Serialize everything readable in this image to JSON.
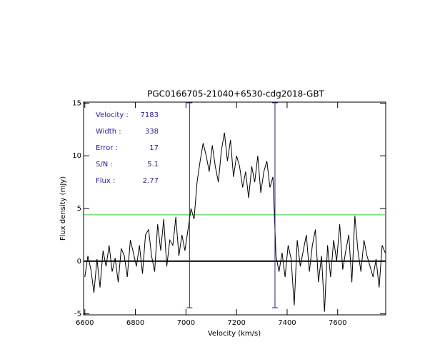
{
  "chart_data": {
    "type": "line",
    "title": "PGC0166705-21040+6530-cdg2018-GBT",
    "xlabel": "Velocity (km/s)",
    "ylabel": "Flux density (mJy)",
    "color": "#000000",
    "x": [
      6600,
      6612,
      6624,
      6636,
      6648,
      6660,
      6672,
      6684,
      6696,
      6708,
      6720,
      6732,
      6744,
      6756,
      6768,
      6780,
      6792,
      6804,
      6816,
      6828,
      6840,
      6852,
      6864,
      6876,
      6888,
      6900,
      6912,
      6924,
      6936,
      6948,
      6960,
      6972,
      6984,
      6996,
      7008,
      7020,
      7032,
      7044,
      7056,
      7068,
      7080,
      7092,
      7104,
      7116,
      7128,
      7140,
      7152,
      7164,
      7176,
      7188,
      7200,
      7212,
      7224,
      7236,
      7248,
      7260,
      7272,
      7284,
      7296,
      7308,
      7320,
      7332,
      7344,
      7356,
      7368,
      7380,
      7392,
      7404,
      7416,
      7428,
      7440,
      7452,
      7464,
      7476,
      7488,
      7500,
      7512,
      7524,
      7536,
      7548,
      7560,
      7572,
      7584,
      7596,
      7608,
      7620,
      7632,
      7644,
      7656,
      7668,
      7680,
      7692,
      7704,
      7716,
      7728,
      7740,
      7752,
      7764,
      7776,
      7788
    ],
    "values": [
      -1.5,
      0.5,
      -0.8,
      -3.0,
      0.2,
      -2.5,
      1.0,
      -0.5,
      1.5,
      -1.0,
      0.3,
      -2.0,
      1.2,
      0.5,
      -1.5,
      2.0,
      0.8,
      -0.5,
      1.5,
      -1.2,
      2.5,
      3.0,
      0.5,
      -1.0,
      3.5,
      1.0,
      4.0,
      -0.5,
      2.0,
      1.5,
      4.2,
      0.5,
      2.5,
      1.0,
      3.0,
      5.0,
      4.0,
      7.5,
      9.5,
      11.2,
      10.0,
      8.5,
      11.0,
      9.0,
      7.5,
      10.5,
      12.2,
      9.5,
      11.5,
      8.0,
      10.0,
      9.0,
      7.0,
      8.5,
      6.0,
      9.0,
      7.5,
      10.0,
      6.5,
      8.5,
      9.5,
      7.0,
      8.0,
      0.5,
      -1.0,
      0.8,
      -1.5,
      1.5,
      0.2,
      -4.2,
      2.0,
      -0.5,
      1.0,
      2.5,
      -1.0,
      1.5,
      3.0,
      -2.0,
      0.5,
      -4.8,
      1.5,
      -1.5,
      2.0,
      0.0,
      3.5,
      -0.8,
      1.0,
      2.5,
      -2.0,
      4.3,
      1.0,
      -1.0,
      2.0,
      0.5,
      -0.5,
      -1.5,
      0.2,
      -2.5,
      1.5,
      0.8
    ],
    "xlim": [
      6595,
      7790
    ],
    "ylim": [
      -5.1,
      15.1
    ],
    "xticks": [
      6600,
      6800,
      7000,
      7200,
      7400,
      7600
    ],
    "yticks": [
      -5,
      0,
      5,
      10,
      15
    ],
    "markers": [
      7014,
      7352
    ],
    "marker_color": "#2a1a9a",
    "level": 4.4,
    "level_color": "#33cc33",
    "annotations": [
      {
        "label": "Velocity :",
        "value": "7183"
      },
      {
        "label": "Width :",
        "value": "338"
      },
      {
        "label": "Error :",
        "value": "17"
      },
      {
        "label": "S/N :",
        "value": "5.1"
      },
      {
        "label": "Flux :",
        "value": "2.77"
      }
    ]
  }
}
